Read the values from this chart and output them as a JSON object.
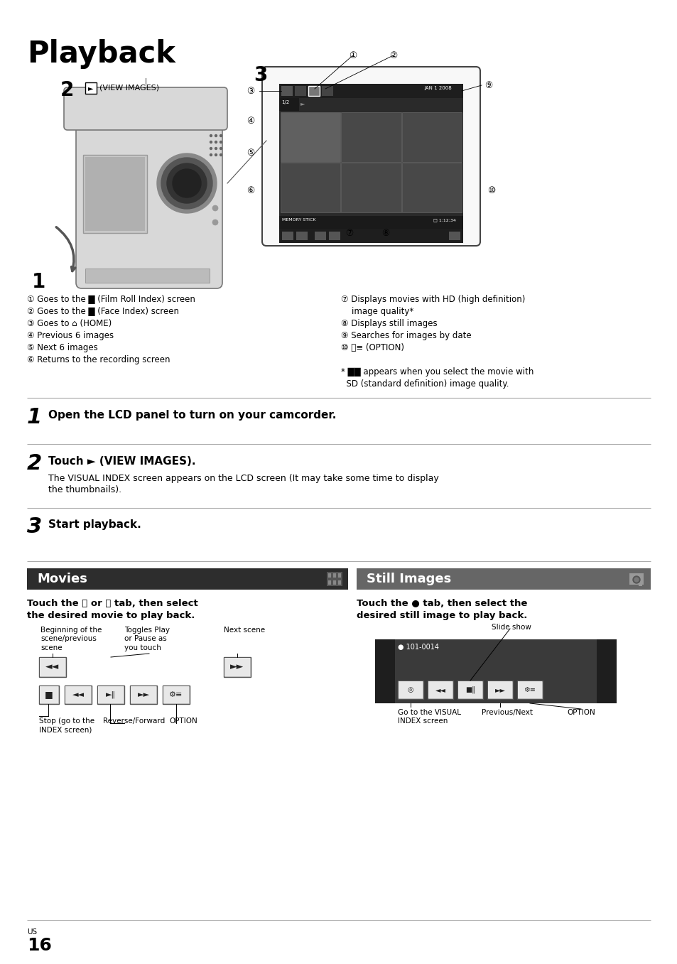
{
  "title": "Playback",
  "bg_color": "#ffffff",
  "page_num": "16",
  "page_region": "US",
  "left_ann": [
    "① Goes to the █ (Film Roll Index) screen",
    "② Goes to the █ (Face Index) screen",
    "③ Goes to ⌂ (HOME)",
    "④ Previous 6 images",
    "⑤ Next 6 images",
    "⑥ Returns to the recording screen"
  ],
  "right_ann_1": "⑦ Displays movies with HD (high definition)",
  "right_ann_2": "    image quality*",
  "right_ann_3": "⑧ Displays still images",
  "right_ann_4": "⑨ Searches for images by date",
  "right_ann_5": "⑩ ⬛≡ (OPTION)",
  "right_ann_6": "* ██ appears when you select the movie with",
  "right_ann_7": "  SD (standard definition) image quality.",
  "step1_num": "1",
  "step1_text": "Open the LCD panel to turn on your camcorder.",
  "step2_num": "2",
  "step2_text": "Touch ► (VIEW IMAGES).",
  "step2_body1": "The VISUAL INDEX screen appears on the LCD screen (It may take some time to display",
  "step2_body2": "the thumbnails).",
  "step3_num": "3",
  "step3_text": "Start playback.",
  "movies_header": "Movies",
  "still_header": "Still Images",
  "mov_bold1": "Touch the ⬛ or ⬛ tab, then select",
  "mov_bold2": "the desired movie to play back.",
  "still_bold1": "Touch the ● tab, then select the",
  "still_bold2": "desired still image to play back.",
  "lbl_beg": "Beginning of the\nscene/previous\nscene",
  "lbl_tog": "Toggles Play\nor Pause as\nyou touch",
  "lbl_next": "Next scene",
  "lbl_stop": "Stop (go to the\nINDEX screen)",
  "lbl_rev": "Reverse/Forward",
  "lbl_opt": "OPTION",
  "lbl_slide": "Slide show",
  "lbl_visual": "Go to the VISUAL\nINDEX screen",
  "lbl_prevnext": "Previous/Next",
  "lbl_opt2": "OPTION",
  "img_num": "● 101-0014"
}
